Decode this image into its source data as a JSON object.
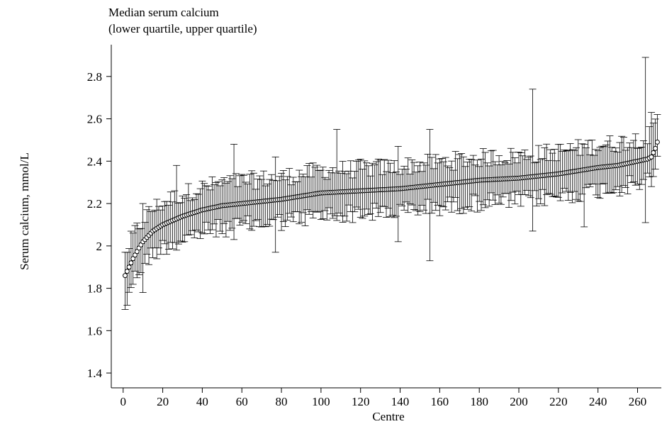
{
  "chart_data": {
    "type": "scatter",
    "title_line1": "Median serum calcium",
    "title_line2": "(lower quartile, upper quartile)",
    "xlabel": "Centre",
    "ylabel": "Serum calcium, mmol/L",
    "xlim": [
      -6,
      272
    ],
    "ylim": [
      1.33,
      2.95
    ],
    "xticks": [
      0,
      20,
      40,
      60,
      80,
      100,
      120,
      140,
      160,
      180,
      200,
      220,
      240,
      260
    ],
    "yticks": [
      1.4,
      1.6,
      1.8,
      2,
      2.2,
      2.4,
      2.6,
      2.8
    ],
    "ytick_labels": [
      "1.4",
      "1.6",
      "1.8",
      "2",
      "2.2",
      "2.4",
      "2.6",
      "2.8"
    ],
    "n_centres": 271,
    "median_anchors": [
      [
        1,
        1.86
      ],
      [
        2,
        1.88
      ],
      [
        3,
        1.9
      ],
      [
        5,
        1.94
      ],
      [
        8,
        1.99
      ],
      [
        10,
        2.02
      ],
      [
        15,
        2.07
      ],
      [
        20,
        2.1
      ],
      [
        30,
        2.14
      ],
      [
        40,
        2.17
      ],
      [
        50,
        2.19
      ],
      [
        60,
        2.2
      ],
      [
        80,
        2.22
      ],
      [
        100,
        2.25
      ],
      [
        120,
        2.26
      ],
      [
        140,
        2.27
      ],
      [
        160,
        2.29
      ],
      [
        180,
        2.31
      ],
      [
        200,
        2.32
      ],
      [
        220,
        2.34
      ],
      [
        240,
        2.37
      ],
      [
        250,
        2.38
      ],
      [
        260,
        2.4
      ],
      [
        265,
        2.41
      ],
      [
        267,
        2.42
      ],
      [
        268,
        2.44
      ],
      [
        269,
        2.46
      ],
      [
        270,
        2.49
      ]
    ],
    "notable_whiskers": [
      {
        "centre": 1,
        "lower": 1.7,
        "upper": 1.97
      },
      {
        "centre": 2,
        "lower": 1.72,
        "upper": 1.97
      },
      {
        "centre": 10,
        "lower": 1.78,
        "upper": 2.2
      },
      {
        "centre": 27,
        "lower": 1.98,
        "upper": 2.38
      },
      {
        "centre": 56,
        "lower": 2.03,
        "upper": 2.48
      },
      {
        "centre": 77,
        "lower": 1.97,
        "upper": 2.42
      },
      {
        "centre": 108,
        "lower": 2.12,
        "upper": 2.55
      },
      {
        "centre": 139,
        "lower": 2.02,
        "upper": 2.47
      },
      {
        "centre": 155,
        "lower": 1.93,
        "upper": 2.55
      },
      {
        "centre": 207,
        "lower": 2.07,
        "upper": 2.74
      },
      {
        "centre": 233,
        "lower": 2.09,
        "upper": 2.48
      },
      {
        "centre": 264,
        "lower": 2.11,
        "upper": 2.89
      },
      {
        "centre": 267,
        "lower": 2.28,
        "upper": 2.63
      }
    ],
    "marker": "open-circle",
    "grid": false,
    "legend": "none"
  }
}
